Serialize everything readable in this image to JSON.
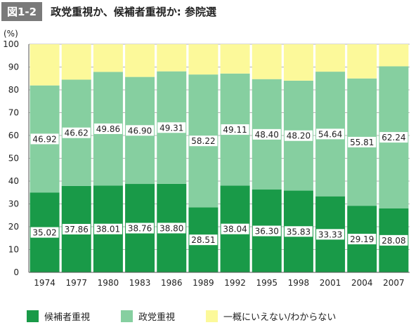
{
  "header": {
    "badge": "図1-2",
    "title": "政党重視か、候補者重視か: 参院選"
  },
  "colors": {
    "candidate": "#199a48",
    "party": "#86cfa0",
    "unknown": "#fcf99a",
    "grid": "#9a9a9a",
    "label_bg": "#ffffff"
  },
  "chart_data": {
    "type": "bar",
    "stacked": true,
    "unit_label": "(%)",
    "categories": [
      "1974",
      "1977",
      "1980",
      "1983",
      "1986",
      "1989",
      "1992",
      "1995",
      "1998",
      "2001",
      "2004",
      "2007"
    ],
    "ylim": [
      0,
      100
    ],
    "yticks": [
      0,
      10,
      20,
      30,
      40,
      50,
      60,
      70,
      80,
      90,
      100
    ],
    "grid": true,
    "series": [
      {
        "name": "候補者重視",
        "color_key": "candidate",
        "values": [
          35.02,
          37.86,
          38.01,
          38.76,
          38.8,
          28.51,
          38.04,
          36.3,
          35.83,
          33.33,
          29.19,
          28.08
        ],
        "labels": [
          "35.02",
          "37.86",
          "38.01",
          "38.76",
          "38.80",
          "28.51",
          "38.04",
          "36.30",
          "35.83",
          "33.33",
          "29.19",
          "28.08"
        ]
      },
      {
        "name": "政党重視",
        "color_key": "party",
        "values": [
          46.92,
          46.62,
          49.86,
          46.9,
          49.31,
          58.22,
          49.11,
          48.4,
          48.2,
          54.64,
          55.81,
          62.24
        ],
        "labels": [
          "46.92",
          "46.62",
          "49.86",
          "46.90",
          "49.31",
          "58.22",
          "49.11",
          "48.40",
          "48.20",
          "54.64",
          "55.81",
          "62.24"
        ]
      },
      {
        "name": "一概にいえない/わからない",
        "color_key": "unknown",
        "values": [
          18.06,
          15.52,
          12.13,
          14.34,
          11.89,
          13.27,
          12.85,
          15.3,
          15.97,
          12.03,
          15.0,
          9.68
        ]
      }
    ],
    "legend_position": "bottom"
  }
}
